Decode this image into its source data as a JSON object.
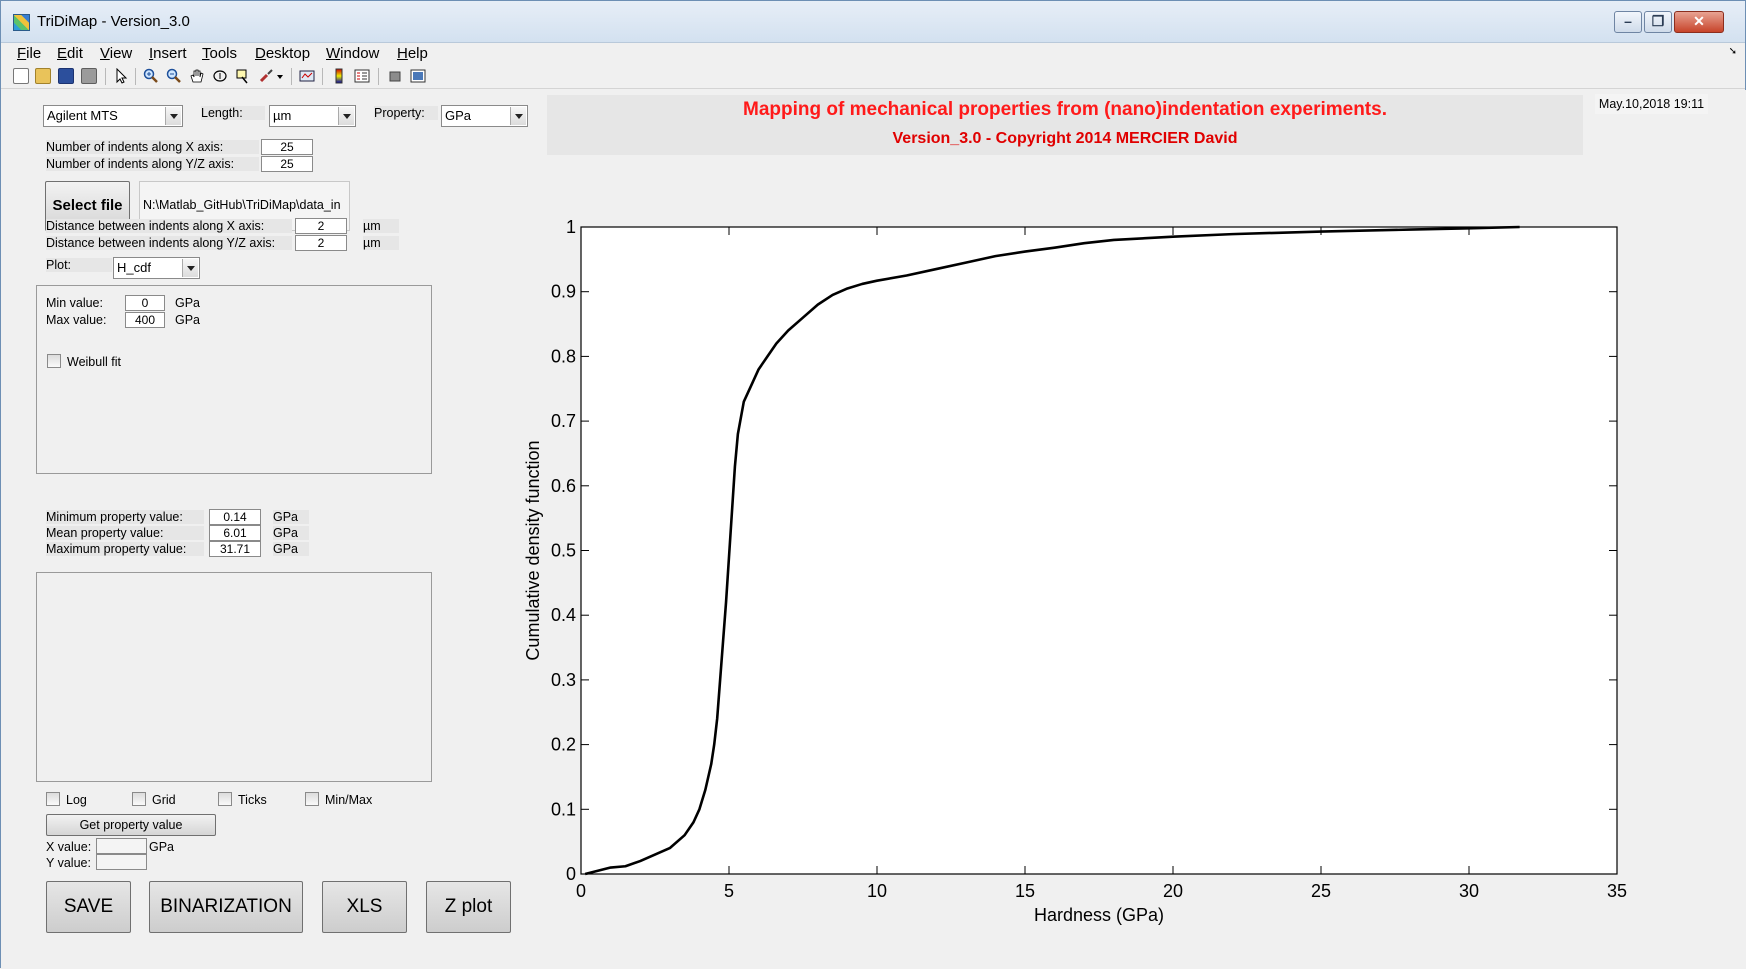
{
  "window": {
    "title": "TriDiMap - Version_3.0"
  },
  "menu": [
    {
      "label": "File",
      "key": "F",
      "rest": "ile"
    },
    {
      "label": "Edit",
      "key": "E",
      "rest": "dit"
    },
    {
      "label": "View",
      "key": "V",
      "rest": "iew"
    },
    {
      "label": "Insert",
      "key": "I",
      "rest": "nsert"
    },
    {
      "label": "Tools",
      "key": "T",
      "rest": "ools"
    },
    {
      "label": "Desktop",
      "key": "D",
      "rest": "esktop"
    },
    {
      "label": "Window",
      "key": "W",
      "rest": "indow"
    },
    {
      "label": "Help",
      "key": "H",
      "rest": "elp"
    }
  ],
  "toolbar_icons": [
    "new-file-icon",
    "open-folder-icon",
    "save-icon",
    "print-icon",
    "pointer-icon",
    "zoom-in-icon",
    "zoom-out-icon",
    "pan-hand-icon",
    "rotate-3d-icon",
    "data-cursor-icon",
    "brush-icon",
    "brush-dropdown-icon",
    "link-plot-icon",
    "colorbar-icon",
    "legend-icon",
    "hide-plot-tools-icon",
    "show-plot-tools-icon"
  ],
  "controls": {
    "instrument": "Agilent MTS",
    "length_label": "Length:",
    "length_unit": "µm",
    "property_label": "Property:",
    "property_unit": "GPa",
    "indents_x_label": "Number of indents along X axis:",
    "indents_x": "25",
    "indents_yz_label": "Number of indents along Y/Z axis:",
    "indents_yz": "25",
    "select_file_label": "Select file",
    "file_path": "N:\\Matlab_GitHub\\TriDiMap\\data_in",
    "dist_x_label": "Distance between indents along X axis:",
    "dist_x": "2",
    "dist_x_unit": "µm",
    "dist_yz_label": "Distance between indents along Y/Z axis:",
    "dist_yz": "2",
    "dist_yz_unit": "µm",
    "plot_label": "Plot:",
    "plot_value": "H_cdf",
    "min_value_label": "Min value:",
    "min_value": "0",
    "min_value_unit": "GPa",
    "max_value_label": "Max value:",
    "max_value": "400",
    "max_value_unit": "GPa",
    "weibull_label": "Weibull fit",
    "min_prop_label": "Minimum property value:",
    "min_prop": "0.14",
    "min_prop_unit": "GPa",
    "mean_prop_label": "Mean property value:",
    "mean_prop": "6.01",
    "mean_prop_unit": "GPa",
    "max_prop_label": "Maximum property value:",
    "max_prop": "31.71",
    "max_prop_unit": "GPa",
    "log_label": "Log",
    "grid_label": "Grid",
    "ticks_label": "Ticks",
    "minmax_label": "Min/Max",
    "get_property_label": "Get property value",
    "x_value_label": "X value:",
    "x_value_unit": "GPa",
    "y_value_label": "Y value:",
    "save_label": "SAVE",
    "binarization_label": "BINARIZATION",
    "xls_label": "XLS",
    "zplot_label": "Z plot"
  },
  "header": {
    "title": "Mapping of mechanical properties from (nano)indentation experiments.",
    "subtitle": "Version_3.0 - Copyright 2014 MERCIER David",
    "date": "May.10,2018 19:11"
  },
  "chart_data": {
    "type": "line",
    "xlabel": "Hardness (GPa)",
    "ylabel": "Cumulative density function",
    "xlim": [
      0,
      35
    ],
    "ylim": [
      0,
      1
    ],
    "xticks": [
      0,
      5,
      10,
      15,
      20,
      25,
      30,
      35
    ],
    "yticks": [
      0,
      0.1,
      0.2,
      0.3,
      0.4,
      0.5,
      0.6,
      0.7,
      0.8,
      0.9,
      1
    ],
    "grid": false,
    "series": [
      {
        "x": [
          0.14,
          1.0,
          1.5,
          2.0,
          2.5,
          3.0,
          3.5,
          3.8,
          4.0,
          4.2,
          4.4,
          4.5,
          4.6,
          4.7,
          4.8,
          4.9,
          5.0,
          5.1,
          5.2,
          5.3,
          5.5,
          5.8,
          6.0,
          6.3,
          6.6,
          7.0,
          7.5,
          8.0,
          8.5,
          9.0,
          9.5,
          10.0,
          11.0,
          12.0,
          13.0,
          14.0,
          15.0,
          16.0,
          17.0,
          18.0,
          20.0,
          22.0,
          25.0,
          28.0,
          30.0,
          31.71
        ],
        "y": [
          0.0,
          0.01,
          0.012,
          0.02,
          0.03,
          0.04,
          0.06,
          0.08,
          0.1,
          0.13,
          0.17,
          0.2,
          0.24,
          0.3,
          0.36,
          0.42,
          0.49,
          0.56,
          0.63,
          0.68,
          0.73,
          0.76,
          0.78,
          0.8,
          0.82,
          0.84,
          0.86,
          0.88,
          0.895,
          0.905,
          0.912,
          0.917,
          0.925,
          0.935,
          0.945,
          0.955,
          0.962,
          0.968,
          0.975,
          0.98,
          0.985,
          0.989,
          0.993,
          0.996,
          0.998,
          1.0
        ]
      }
    ]
  }
}
